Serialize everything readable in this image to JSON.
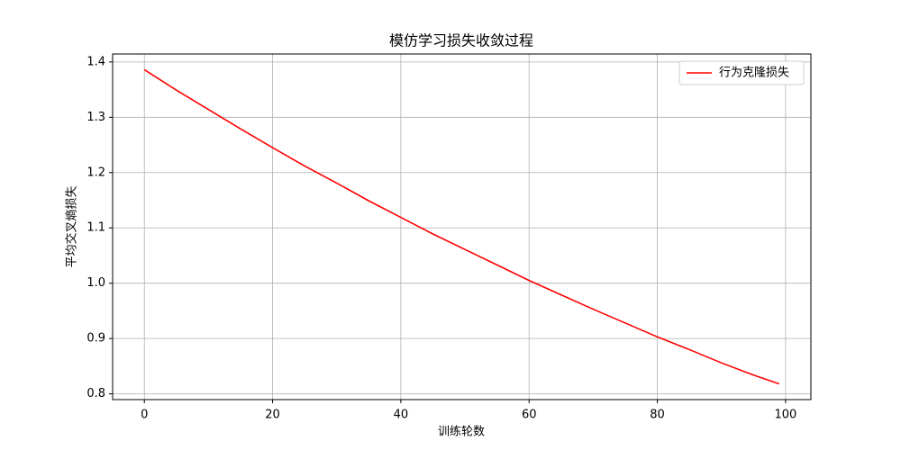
{
  "chart_data": {
    "type": "line",
    "title": "模仿学习损失收敛过程",
    "xlabel": "训练轮数",
    "ylabel": "平均交叉熵损失",
    "x": [
      0,
      5,
      10,
      15,
      20,
      25,
      30,
      35,
      40,
      45,
      50,
      55,
      60,
      65,
      70,
      75,
      80,
      85,
      90,
      95,
      99
    ],
    "series": [
      {
        "name": "行为克隆损失",
        "color": "#ff0000",
        "values": [
          1.386,
          1.349,
          1.314,
          1.279,
          1.245,
          1.212,
          1.181,
          1.149,
          1.119,
          1.089,
          1.061,
          1.033,
          1.005,
          0.979,
          0.953,
          0.928,
          0.903,
          0.88,
          0.856,
          0.834,
          0.818
        ]
      }
    ],
    "xlim": [
      -4.95,
      103.95
    ],
    "xticks": [
      0,
      20,
      40,
      60,
      80,
      100
    ],
    "ylim": [
      0.7896,
      1.4144
    ],
    "yticks": [
      0.8,
      0.9,
      {
        "value": 1,
        "label": "1.0"
      },
      1.1,
      1.2,
      1.3,
      1.4
    ],
    "grid": true,
    "legend": "upper right"
  }
}
